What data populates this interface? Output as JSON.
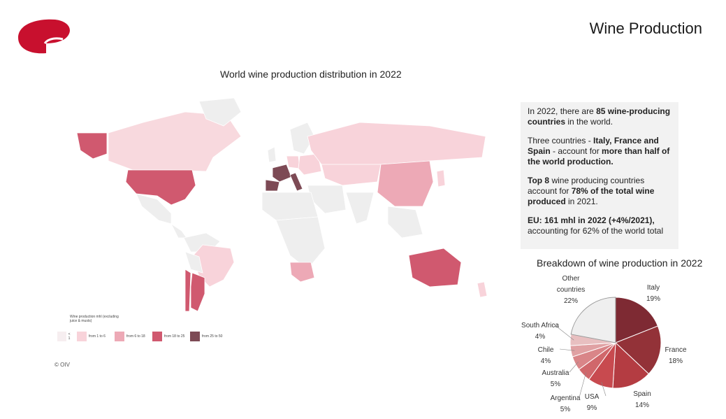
{
  "header": {
    "page_title": "Wine Production"
  },
  "map": {
    "title": "World wine production distribution in 2022",
    "legend": {
      "title": "Wine production mhl (excluding juice & musts)",
      "items": [
        {
          "label": "< 1",
          "color": "#f6eef0"
        },
        {
          "label": "from 1 to 6",
          "color": "#f8d3da"
        },
        {
          "label": "from 6 to 18",
          "color": "#eda9b6"
        },
        {
          "label": "from 18 to 25",
          "color": "#d0596f"
        },
        {
          "label": "from 25 to 50",
          "color": "#7d4a55"
        }
      ]
    },
    "copyright": "© OIV"
  },
  "info": {
    "p1_a": "In 2022, there are ",
    "p1_b": "85 wine-producing countries",
    "p1_c": " in the world.",
    "p2_a": "Three countries - ",
    "p2_b": "Italy, France and Spain",
    "p2_c": " - account for ",
    "p2_d": "more than half of the world production.",
    "p3_a": "Top 8",
    "p3_b": " wine producing countries account for ",
    "p3_c": "78% of the total wine produced",
    "p3_d": " in 2021.",
    "p4_a": "EU: 161 mhl in 2022 (+4%/2021),",
    "p4_b": " accounting for 62% of the world total"
  },
  "chart_data": {
    "type": "pie",
    "title": "Breakdown of wine production in 2022",
    "slices": [
      {
        "label": "Italy",
        "value": 19,
        "display": "19%",
        "color": "#7e2a33"
      },
      {
        "label": "France",
        "value": 18,
        "display": "18%",
        "color": "#933238"
      },
      {
        "label": "Spain",
        "value": 14,
        "display": "14%",
        "color": "#b43c42"
      },
      {
        "label": "USA",
        "value": 9,
        "display": "9%",
        "color": "#c84a4f"
      },
      {
        "label": "Argentina",
        "value": 5,
        "display": "5%",
        "color": "#d0676b"
      },
      {
        "label": "Australia",
        "value": 5,
        "display": "5%",
        "color": "#d98588"
      },
      {
        "label": "Chile",
        "value": 4,
        "display": "4%",
        "color": "#e0a1a3"
      },
      {
        "label": "South Africa",
        "value": 4,
        "display": "4%",
        "color": "#e8bfc0"
      },
      {
        "label": "Other countries",
        "value": 22,
        "display": "22%",
        "color": "#efefef"
      }
    ]
  }
}
